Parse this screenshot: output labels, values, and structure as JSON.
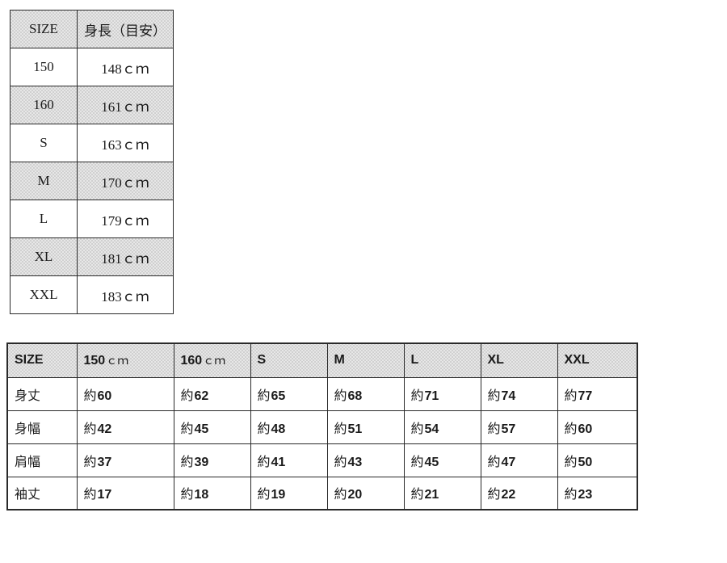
{
  "colors": {
    "border": "#2a2a2a",
    "row_shade": "#dcdcdc",
    "background": "#ffffff",
    "text": "#1a1a1a"
  },
  "size_height_table": {
    "col_headers": [
      "SIZE",
      "身長（目安）"
    ],
    "rows": [
      {
        "size": "150",
        "height": "148ｃｍ"
      },
      {
        "size": "160",
        "height": "161ｃｍ"
      },
      {
        "size": "S",
        "height": "163ｃｍ"
      },
      {
        "size": "M",
        "height": "170ｃｍ"
      },
      {
        "size": "L",
        "height": "179ｃｍ"
      },
      {
        "size": "XL",
        "height": "181ｃｍ"
      },
      {
        "size": "XXL",
        "height": "183ｃｍ"
      }
    ]
  },
  "measurements_table": {
    "corner_label": "SIZE",
    "col_headers": [
      {
        "size": "150",
        "unit": "ｃｍ"
      },
      {
        "size": "160",
        "unit": "ｃｍ"
      },
      {
        "size": "S",
        "unit": ""
      },
      {
        "size": "M",
        "unit": ""
      },
      {
        "size": "L",
        "unit": ""
      },
      {
        "size": "XL",
        "unit": ""
      },
      {
        "size": "XXL",
        "unit": ""
      }
    ],
    "value_prefix": "約",
    "rows": [
      {
        "label": "身丈",
        "values": [
          60,
          62,
          65,
          68,
          71,
          74,
          77
        ]
      },
      {
        "label": "身幅",
        "values": [
          42,
          45,
          48,
          51,
          54,
          57,
          60
        ]
      },
      {
        "label": "肩幅",
        "values": [
          37,
          39,
          41,
          43,
          45,
          47,
          50
        ]
      },
      {
        "label": "袖丈",
        "values": [
          17,
          18,
          19,
          20,
          21,
          22,
          23
        ]
      }
    ]
  },
  "chart_data": [
    {
      "type": "table",
      "columns": [
        "SIZE",
        "身長（目安）"
      ],
      "rows": [
        [
          "150",
          "148ｃｍ"
        ],
        [
          "160",
          "161ｃｍ"
        ],
        [
          "S",
          "163ｃｍ"
        ],
        [
          "M",
          "170ｃｍ"
        ],
        [
          "L",
          "179ｃｍ"
        ],
        [
          "XL",
          "181ｃｍ"
        ],
        [
          "XXL",
          "183ｃｍ"
        ]
      ]
    },
    {
      "type": "table",
      "columns": [
        "SIZE",
        "150ｃｍ",
        "160ｃｍ",
        "S",
        "M",
        "L",
        "XL",
        "XXL"
      ],
      "rows": [
        [
          "身丈",
          "約60",
          "約62",
          "約65",
          "約68",
          "約71",
          "約74",
          "約77"
        ],
        [
          "身幅",
          "約42",
          "約45",
          "約48",
          "約51",
          "約54",
          "約57",
          "約60"
        ],
        [
          "肩幅",
          "約37",
          "約39",
          "約41",
          "約43",
          "約45",
          "約47",
          "約50"
        ],
        [
          "袖丈",
          "約17",
          "約18",
          "約19",
          "約20",
          "約21",
          "約22",
          "約23"
        ]
      ]
    }
  ]
}
